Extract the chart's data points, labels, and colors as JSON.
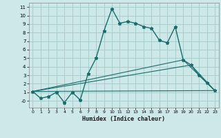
{
  "xlabel": "Humidex (Indice chaleur)",
  "xlim": [
    -0.5,
    23.5
  ],
  "ylim": [
    -0.8,
    11.5
  ],
  "yticks": [
    0,
    1,
    2,
    3,
    4,
    5,
    6,
    7,
    8,
    9,
    10,
    11
  ],
  "ytick_labels": [
    "-0",
    "1",
    "2",
    "3",
    "4",
    "5",
    "6",
    "7",
    "8",
    "9",
    "10",
    "11"
  ],
  "xticks": [
    0,
    1,
    2,
    3,
    4,
    5,
    6,
    7,
    8,
    9,
    10,
    11,
    12,
    13,
    14,
    15,
    16,
    17,
    18,
    19,
    20,
    21,
    22,
    23
  ],
  "background_color": "#cce8e8",
  "grid_color": "#a8cccc",
  "line_color": "#1a6b6b",
  "line1_x": [
    0,
    1,
    2,
    3,
    4,
    5,
    6,
    7,
    8,
    9,
    10,
    11,
    12,
    13,
    14,
    15,
    16,
    17,
    18,
    19,
    20,
    21,
    22,
    23
  ],
  "line1_y": [
    1.1,
    0.3,
    0.5,
    1.0,
    -0.2,
    1.0,
    0.1,
    3.2,
    5.0,
    8.2,
    10.8,
    9.1,
    9.3,
    9.1,
    8.7,
    8.5,
    7.1,
    6.8,
    8.7,
    4.8,
    4.2,
    3.0,
    2.1,
    1.2
  ],
  "line2_x": [
    0,
    23
  ],
  "line2_y": [
    1.1,
    1.2
  ],
  "line3_x": [
    0,
    19,
    23
  ],
  "line3_y": [
    1.1,
    4.8,
    1.2
  ],
  "line4_x": [
    0,
    20,
    23
  ],
  "line4_y": [
    1.1,
    4.2,
    1.2
  ]
}
